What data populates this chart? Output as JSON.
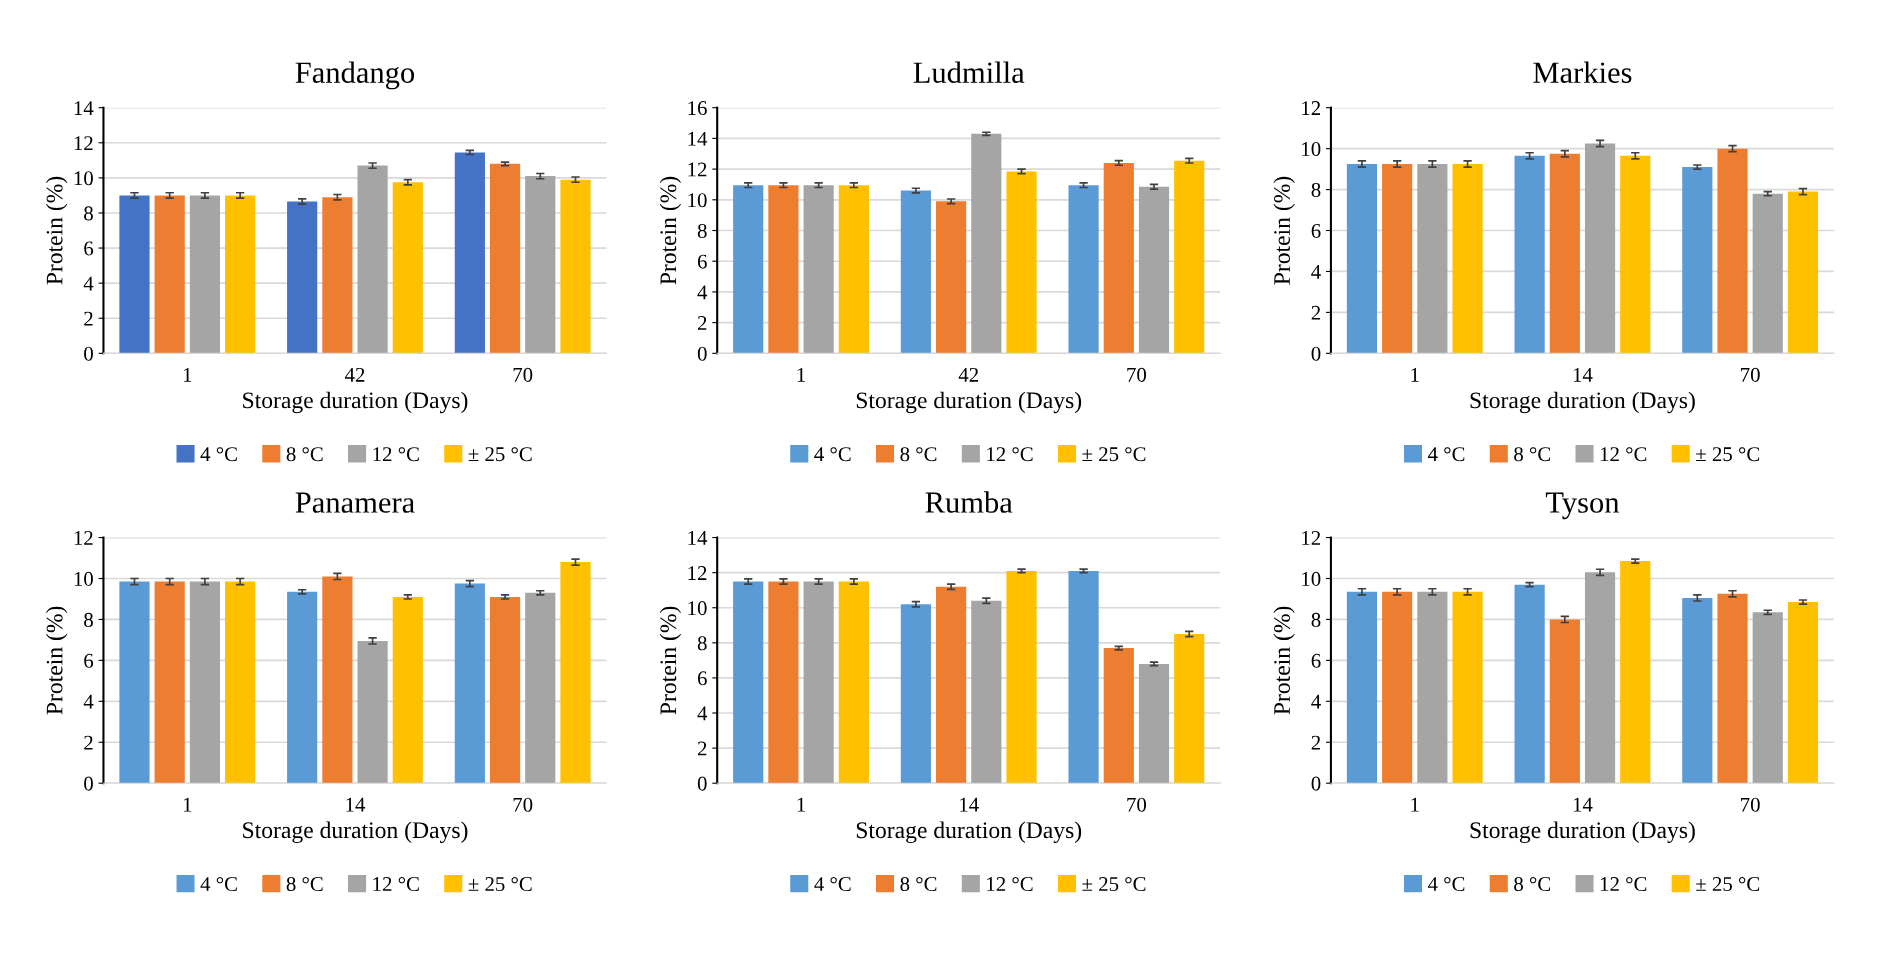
{
  "chart_data": [
    {
      "type": "bar",
      "title": "Fandango",
      "xlabel": "Storage duration (Days)",
      "ylabel": "Protein (%)",
      "categories": [
        "1",
        "42",
        "70"
      ],
      "ylim": [
        0,
        14
      ],
      "yticks": [
        0,
        2,
        4,
        6,
        8,
        10,
        12,
        14
      ],
      "grid": "y",
      "legend": "bottom",
      "series": [
        {
          "name": "4 °C",
          "color": "#4472c4",
          "values": [
            9.0,
            8.65,
            11.45
          ],
          "errors": [
            0.15,
            0.15,
            0.12
          ]
        },
        {
          "name": "8 °C",
          "color": "#ed7d31",
          "values": [
            9.0,
            8.9,
            10.8
          ],
          "errors": [
            0.15,
            0.15,
            0.1
          ]
        },
        {
          "name": "12 °C",
          "color": "#a5a5a5",
          "values": [
            9.0,
            10.7,
            10.1
          ],
          "errors": [
            0.15,
            0.15,
            0.15
          ]
        },
        {
          "name": "± 25 °C",
          "color": "#ffc000",
          "values": [
            9.0,
            9.75,
            9.9
          ],
          "errors": [
            0.15,
            0.15,
            0.15
          ]
        }
      ]
    },
    {
      "type": "bar",
      "title": "Ludmilla",
      "xlabel": "Storage duration (Days)",
      "ylabel": "Protein (%)",
      "categories": [
        "1",
        "42",
        "70"
      ],
      "ylim": [
        0,
        16
      ],
      "yticks": [
        0,
        2,
        4,
        6,
        8,
        10,
        12,
        14,
        16
      ],
      "grid": "y",
      "legend": "bottom",
      "series": [
        {
          "name": "4 °C",
          "color": "#5b9bd5",
          "values": [
            10.95,
            10.6,
            10.95
          ],
          "errors": [
            0.15,
            0.15,
            0.15
          ]
        },
        {
          "name": "8 °C",
          "color": "#ed7d31",
          "values": [
            10.95,
            9.9,
            12.4
          ],
          "errors": [
            0.15,
            0.15,
            0.15
          ]
        },
        {
          "name": "12 °C",
          "color": "#a5a5a5",
          "values": [
            10.95,
            14.3,
            10.85
          ],
          "errors": [
            0.15,
            0.1,
            0.15
          ]
        },
        {
          "name": "± 25 °C",
          "color": "#ffc000",
          "values": [
            10.95,
            11.85,
            12.55
          ],
          "errors": [
            0.15,
            0.15,
            0.15
          ]
        }
      ]
    },
    {
      "type": "bar",
      "title": "Markies",
      "xlabel": "Storage duration (Days)",
      "ylabel": "Protein (%)",
      "categories": [
        "1",
        "14",
        "70"
      ],
      "ylim": [
        0,
        12
      ],
      "yticks": [
        0,
        2,
        4,
        6,
        8,
        10,
        12
      ],
      "grid": "y",
      "legend": "bottom",
      "series": [
        {
          "name": "4 °C",
          "color": "#5b9bd5",
          "values": [
            9.25,
            9.65,
            9.1
          ],
          "errors": [
            0.15,
            0.15,
            0.1
          ]
        },
        {
          "name": "8 °C",
          "color": "#ed7d31",
          "values": [
            9.25,
            9.75,
            10.0
          ],
          "errors": [
            0.15,
            0.15,
            0.15
          ]
        },
        {
          "name": "12 °C",
          "color": "#a5a5a5",
          "values": [
            9.25,
            10.25,
            7.8
          ],
          "errors": [
            0.15,
            0.15,
            0.1
          ]
        },
        {
          "name": "± 25 °C",
          "color": "#ffc000",
          "values": [
            9.25,
            9.65,
            7.9
          ],
          "errors": [
            0.15,
            0.15,
            0.15
          ]
        }
      ]
    },
    {
      "type": "bar",
      "title": "Panamera",
      "xlabel": "Storage duration (Days)",
      "ylabel": "Protein (%)",
      "categories": [
        "1",
        "14",
        "70"
      ],
      "ylim": [
        0,
        12
      ],
      "yticks": [
        0,
        2,
        4,
        6,
        8,
        10,
        12
      ],
      "grid": "y",
      "legend": "bottom",
      "series": [
        {
          "name": "4 °C",
          "color": "#5b9bd5",
          "values": [
            9.85,
            9.35,
            9.75
          ],
          "errors": [
            0.15,
            0.1,
            0.15
          ]
        },
        {
          "name": "8 °C",
          "color": "#ed7d31",
          "values": [
            9.85,
            10.1,
            9.1
          ],
          "errors": [
            0.15,
            0.15,
            0.1
          ]
        },
        {
          "name": "12 °C",
          "color": "#a5a5a5",
          "values": [
            9.85,
            6.95,
            9.3
          ],
          "errors": [
            0.15,
            0.15,
            0.1
          ]
        },
        {
          "name": "± 25 °C",
          "color": "#ffc000",
          "values": [
            9.85,
            9.1,
            10.8
          ],
          "errors": [
            0.15,
            0.1,
            0.15
          ]
        }
      ]
    },
    {
      "type": "bar",
      "title": "Rumba",
      "xlabel": "Storage duration (Days)",
      "ylabel": "Protein (%)",
      "categories": [
        "1",
        "14",
        "70"
      ],
      "ylim": [
        0,
        14
      ],
      "yticks": [
        0,
        2,
        4,
        6,
        8,
        10,
        12,
        14
      ],
      "grid": "y",
      "legend": "bottom",
      "series": [
        {
          "name": "4 °C",
          "color": "#5b9bd5",
          "values": [
            11.5,
            10.2,
            12.1
          ],
          "errors": [
            0.15,
            0.15,
            0.1
          ]
        },
        {
          "name": "8 °C",
          "color": "#ed7d31",
          "values": [
            11.5,
            11.2,
            7.7
          ],
          "errors": [
            0.15,
            0.15,
            0.1
          ]
        },
        {
          "name": "12 °C",
          "color": "#a5a5a5",
          "values": [
            11.5,
            10.4,
            6.8
          ],
          "errors": [
            0.15,
            0.15,
            0.1
          ]
        },
        {
          "name": "± 25 °C",
          "color": "#ffc000",
          "values": [
            11.5,
            12.1,
            8.5
          ],
          "errors": [
            0.15,
            0.1,
            0.15
          ]
        }
      ]
    },
    {
      "type": "bar",
      "title": "Tyson",
      "xlabel": "Storage duration (Days)",
      "ylabel": "Protein (%)",
      "categories": [
        "1",
        "14",
        "70"
      ],
      "ylim": [
        0,
        12
      ],
      "yticks": [
        0,
        2,
        4,
        6,
        8,
        10,
        12
      ],
      "grid": "y",
      "legend": "bottom",
      "series": [
        {
          "name": "4 °C",
          "color": "#5b9bd5",
          "values": [
            9.35,
            9.7,
            9.05
          ],
          "errors": [
            0.15,
            0.1,
            0.15
          ]
        },
        {
          "name": "8 °C",
          "color": "#ed7d31",
          "values": [
            9.35,
            8.0,
            9.25
          ],
          "errors": [
            0.15,
            0.15,
            0.15
          ]
        },
        {
          "name": "12 °C",
          "color": "#a5a5a5",
          "values": [
            9.35,
            10.3,
            8.35
          ],
          "errors": [
            0.15,
            0.15,
            0.1
          ]
        },
        {
          "name": "± 25 °C",
          "color": "#ffc000",
          "values": [
            9.35,
            10.85,
            8.85
          ],
          "errors": [
            0.15,
            0.1,
            0.1
          ]
        }
      ]
    }
  ]
}
